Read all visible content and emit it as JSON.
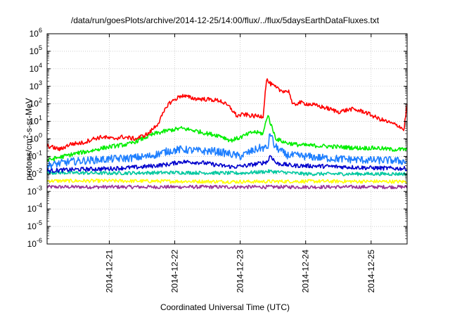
{
  "chart_data": {
    "type": "line",
    "title": "/data/run/goesPlots/archive/2014-12-25/14:00/flux/../flux/5daysEarthDataFluxes.txt",
    "xlabel": "Coordinated Universal Time (UTC)",
    "ylabel_parts": [
      "protons/cm",
      "2",
      "-s-sr-MeV"
    ],
    "x_ticks": [
      "2014-12-21",
      "2014-12-22",
      "2014-12-23",
      "2014-12-24",
      "2014-12-25"
    ],
    "xlim": [
      -0.95,
      4.55
    ],
    "y_scale": "log",
    "ylim": [
      1e-06,
      1000000.0
    ],
    "y_ticks": [
      {
        "base": "10",
        "exp": "-6"
      },
      {
        "base": "10",
        "exp": "-5"
      },
      {
        "base": "10",
        "exp": "-4"
      },
      {
        "base": "10",
        "exp": "-3"
      },
      {
        "base": "10",
        "exp": "-2"
      },
      {
        "base": "10",
        "exp": "-1"
      },
      {
        "base": "10",
        "exp": "0"
      },
      {
        "base": "10",
        "exp": "1"
      },
      {
        "base": "10",
        "exp": "2"
      },
      {
        "base": "10",
        "exp": "3"
      },
      {
        "base": "10",
        "exp": "4"
      },
      {
        "base": "10",
        "exp": "5"
      },
      {
        "base": "10",
        "exp": "6"
      }
    ],
    "grid": true,
    "series": [
      {
        "color": "#ff0000",
        "noise": 0.12,
        "x": [
          -0.95,
          -0.75,
          -0.6,
          -0.4,
          -0.25,
          -0.1,
          0.05,
          0.2,
          0.4,
          0.6,
          0.75,
          0.9,
          1.1,
          1.3,
          1.5,
          1.7,
          1.85,
          1.95,
          2.05,
          2.2,
          2.35,
          2.4,
          2.45,
          2.6,
          2.75,
          2.8,
          2.9,
          3.1,
          3.3,
          3.5,
          3.7,
          3.9,
          4.1,
          4.3,
          4.45,
          4.5,
          4.55
        ],
        "y": [
          0.4,
          0.25,
          0.5,
          0.6,
          1.0,
          1.3,
          1.0,
          1.3,
          1.0,
          2.0,
          8.0,
          100,
          300,
          200,
          180,
          150,
          60,
          20,
          25,
          20,
          20,
          2500,
          1500,
          600,
          500,
          80,
          120,
          90,
          60,
          35,
          50,
          35,
          15,
          8,
          5,
          3,
          100
        ]
      },
      {
        "color": "#00ee00",
        "noise": 0.12,
        "x": [
          -0.95,
          -0.7,
          -0.5,
          -0.3,
          -0.1,
          0.1,
          0.3,
          0.5,
          0.7,
          0.9,
          1.1,
          1.3,
          1.5,
          1.7,
          1.85,
          2.0,
          2.2,
          2.35,
          2.42,
          2.48,
          2.55,
          2.7,
          2.9,
          3.2,
          3.5,
          3.8,
          4.1,
          4.3,
          4.55
        ],
        "y": [
          0.06,
          0.1,
          0.15,
          0.2,
          0.3,
          0.4,
          0.5,
          1.0,
          2.0,
          3.0,
          4.0,
          3.0,
          2.0,
          1.5,
          0.8,
          1.2,
          2.5,
          2.0,
          25,
          5.0,
          1.0,
          0.6,
          0.45,
          0.4,
          0.35,
          0.3,
          0.3,
          0.25,
          0.25
        ]
      },
      {
        "color": "#1e7fff",
        "noise": 0.22,
        "x": [
          -0.95,
          -0.6,
          -0.3,
          0.0,
          0.3,
          0.6,
          0.9,
          1.1,
          1.4,
          1.6,
          1.8,
          2.0,
          2.1,
          2.3,
          2.42,
          2.46,
          2.52,
          2.7,
          3.0,
          3.3,
          3.6,
          4.0,
          4.3,
          4.55
        ],
        "y": [
          0.03,
          0.05,
          0.06,
          0.07,
          0.08,
          0.1,
          0.2,
          0.25,
          0.2,
          0.2,
          0.15,
          0.1,
          0.15,
          0.3,
          0.3,
          2.5,
          0.4,
          0.12,
          0.1,
          0.08,
          0.07,
          0.06,
          0.06,
          0.05
        ]
      },
      {
        "color": "#0000cc",
        "noise": 0.12,
        "x": [
          -0.95,
          -0.5,
          0.0,
          0.5,
          0.9,
          1.1,
          1.4,
          1.7,
          1.9,
          2.1,
          2.3,
          2.42,
          2.46,
          2.55,
          2.8,
          3.2,
          3.6,
          4.0,
          4.55
        ],
        "y": [
          0.015,
          0.018,
          0.02,
          0.025,
          0.035,
          0.05,
          0.045,
          0.03,
          0.025,
          0.03,
          0.04,
          0.05,
          0.12,
          0.04,
          0.03,
          0.028,
          0.025,
          0.022,
          0.02
        ]
      },
      {
        "color": "#00c8a0",
        "noise": 0.1,
        "x": [
          -0.95,
          0.0,
          1.0,
          2.0,
          2.45,
          3.0,
          4.0,
          4.55
        ],
        "y": [
          0.012,
          0.011,
          0.012,
          0.011,
          0.014,
          0.01,
          0.01,
          0.01
        ]
      },
      {
        "color": "#ffff00",
        "noise": 0.1,
        "x": [
          -0.95,
          0.0,
          1.0,
          2.0,
          3.0,
          4.0,
          4.55
        ],
        "y": [
          0.004,
          0.004,
          0.0038,
          0.0036,
          0.0038,
          0.0037,
          0.0036
        ]
      },
      {
        "color": "#99339a",
        "noise": 0.1,
        "x": [
          -0.95,
          0.0,
          1.0,
          2.0,
          3.0,
          4.0,
          4.55
        ],
        "y": [
          0.0018,
          0.0018,
          0.0018,
          0.0018,
          0.0018,
          0.0018,
          0.0018
        ]
      }
    ]
  }
}
